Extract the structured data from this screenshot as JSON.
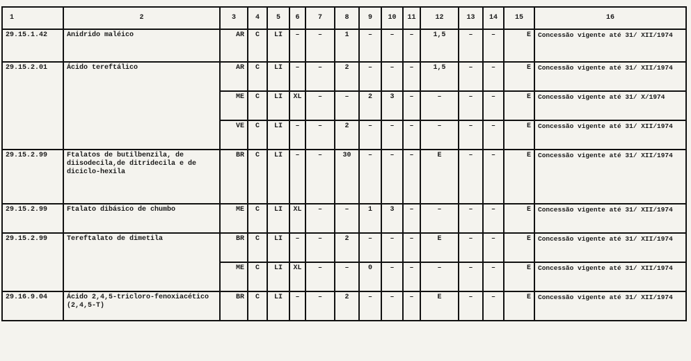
{
  "headers": [
    "1",
    "2",
    "3",
    "4",
    "5",
    "6",
    "7",
    "8",
    "9",
    "10",
    "11",
    "12",
    "13",
    "14",
    "15",
    "16"
  ],
  "entries": [
    {
      "code": "29.15.1.42",
      "description": "Anidrido maléico",
      "rows": [
        [
          "AR",
          "C",
          "LI",
          "–",
          "–",
          "1",
          "–",
          "–",
          "–",
          "1,5",
          "–",
          "–",
          "E",
          "Concessão vigente até 31/ XII/1974"
        ]
      ]
    },
    {
      "code": "29.15.2.01",
      "description": "Ácido tereftálico",
      "rows": [
        [
          "AR",
          "C",
          "LI",
          "–",
          "–",
          "2",
          "–",
          "–",
          "–",
          "1,5",
          "–",
          "–",
          "E",
          "Concessão vigente até 31/ XII/1974"
        ],
        [
          "ME",
          "C",
          "LI",
          "XL",
          "–",
          "–",
          "2",
          "3",
          "–",
          "–",
          "–",
          "–",
          "E",
          "Concessão vigente até 31/ X/1974"
        ],
        [
          "VE",
          "C",
          "LI",
          "–",
          "–",
          "2",
          "–",
          "–",
          "–",
          "–",
          "–",
          "–",
          "E",
          "Concessão vigente até 31/ XII/1974"
        ]
      ]
    },
    {
      "code": "29.15.2.99",
      "description": "Ftalatos de butilbenzila, de diisodecila,de ditridecila e de diciclo-hexila",
      "rows": [
        [
          "BR",
          "C",
          "LI",
          "–",
          "–",
          "30",
          "–",
          "–",
          "–",
          "E",
          "–",
          "–",
          "E",
          "Concessão vigente até 31/ XII/1974"
        ]
      ]
    },
    {
      "code": "29.15.2.99",
      "description": "Ftalato dibásico de chumbo",
      "rows": [
        [
          "ME",
          "C",
          "LI",
          "XL",
          "–",
          "–",
          "1",
          "3",
          "–",
          "–",
          "–",
          "–",
          "E",
          "Concessão vigente até 31/ XII/1974"
        ]
      ]
    },
    {
      "code": "29.15.2.99",
      "description": "Tereftalato de dimetila",
      "rows": [
        [
          "BR",
          "C",
          "LI",
          "–",
          "–",
          "2",
          "–",
          "–",
          "–",
          "E",
          "–",
          "–",
          "E",
          "Concessão vigente até 31/ XII/1974"
        ],
        [
          "ME",
          "C",
          "LI",
          "XL",
          "–",
          "–",
          "0",
          "–",
          "–",
          "–",
          "–",
          "–",
          "E",
          "Concessão vigente até 31/ XII/1974"
        ]
      ]
    },
    {
      "code": "29.16.9.04",
      "description": "Ácido 2,4,5-tricloro-fenoxiacético (2,4,5-T)",
      "rows": [
        [
          "BR",
          "C",
          "LI",
          "–",
          "–",
          "2",
          "–",
          "–",
          "–",
          "E",
          "–",
          "–",
          "E",
          "Concessão vigente até 31/ XII/1974"
        ]
      ]
    }
  ]
}
